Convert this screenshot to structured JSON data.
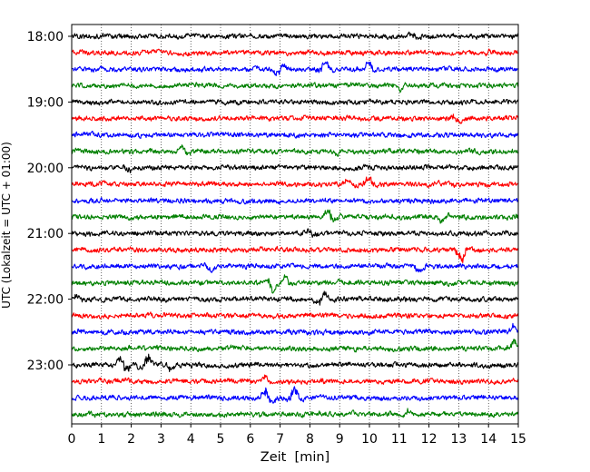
{
  "chart_data": {
    "type": "line",
    "title": "",
    "xlabel": "Zeit  [min]",
    "ylabel": "UTC (Lokalzeit = UTC + 01:00)",
    "xlim": [
      0,
      15
    ],
    "x_ticks": [
      "0",
      "1",
      "2",
      "3",
      "4",
      "5",
      "6",
      "7",
      "8",
      "9",
      "10",
      "11",
      "12",
      "13",
      "14",
      "15"
    ],
    "y_ticks": [
      {
        "label": "18:00",
        "trace_index": 0
      },
      {
        "label": "19:00",
        "trace_index": 4
      },
      {
        "label": "20:00",
        "trace_index": 8
      },
      {
        "label": "21:00",
        "trace_index": 12
      },
      {
        "label": "22:00",
        "trace_index": 16
      },
      {
        "label": "23:00",
        "trace_index": 20
      }
    ],
    "grid": "vertical dotted lines at each minute",
    "trace_colors": [
      "#000000",
      "#ff0000",
      "#0000ff",
      "#008000"
    ],
    "trace_count": 24,
    "trace_interval_minutes": 15,
    "series": [
      {
        "start": "18:00",
        "color": "#000000",
        "events": [
          {
            "x": 11.5,
            "amp": 0.5
          }
        ]
      },
      {
        "start": "18:15",
        "color": "#ff0000",
        "events": [
          {
            "x": 14.0,
            "amp": 0.4
          }
        ]
      },
      {
        "start": "18:30",
        "color": "#0000ff",
        "events": [
          {
            "x": 7.0,
            "amp": 0.9
          },
          {
            "x": 8.5,
            "amp": 0.9
          },
          {
            "x": 10.0,
            "amp": 0.7
          }
        ]
      },
      {
        "start": "18:45",
        "color": "#008000",
        "events": [
          {
            "x": 11.0,
            "amp": 0.5
          }
        ]
      },
      {
        "start": "19:00",
        "color": "#000000",
        "events": []
      },
      {
        "start": "19:15",
        "color": "#ff0000",
        "events": [
          {
            "x": 12.9,
            "amp": 0.6
          }
        ]
      },
      {
        "start": "19:30",
        "color": "#0000ff",
        "events": []
      },
      {
        "start": "19:45",
        "color": "#008000",
        "events": [
          {
            "x": 3.8,
            "amp": 0.6
          },
          {
            "x": 9.0,
            "amp": 0.5
          }
        ]
      },
      {
        "start": "20:00",
        "color": "#000000",
        "events": [
          {
            "x": 2.0,
            "amp": 0.4
          }
        ]
      },
      {
        "start": "20:15",
        "color": "#ff0000",
        "events": [
          {
            "x": 9.3,
            "amp": 0.6
          },
          {
            "x": 10.0,
            "amp": 0.8
          }
        ]
      },
      {
        "start": "20:30",
        "color": "#0000ff",
        "events": []
      },
      {
        "start": "20:45",
        "color": "#008000",
        "events": [
          {
            "x": 8.7,
            "amp": 0.9
          },
          {
            "x": 12.5,
            "amp": 0.6
          }
        ]
      },
      {
        "start": "21:00",
        "color": "#000000",
        "events": [
          {
            "x": 8.0,
            "amp": 0.5
          }
        ]
      },
      {
        "start": "21:15",
        "color": "#ff0000",
        "events": [
          {
            "x": 13.1,
            "amp": 1.4
          }
        ]
      },
      {
        "start": "21:30",
        "color": "#0000ff",
        "events": [
          {
            "x": 4.7,
            "amp": 0.6
          },
          {
            "x": 11.7,
            "amp": 0.7
          }
        ]
      },
      {
        "start": "21:45",
        "color": "#008000",
        "events": [
          {
            "x": 6.7,
            "amp": 1.2
          },
          {
            "x": 7.2,
            "amp": 0.8
          }
        ]
      },
      {
        "start": "22:00",
        "color": "#000000",
        "events": [
          {
            "x": 0.2,
            "amp": 0.6
          },
          {
            "x": 8.4,
            "amp": 0.9
          }
        ]
      },
      {
        "start": "22:15",
        "color": "#ff0000",
        "events": []
      },
      {
        "start": "22:30",
        "color": "#0000ff",
        "events": [
          {
            "x": 14.9,
            "amp": 0.8
          }
        ]
      },
      {
        "start": "22:45",
        "color": "#008000",
        "events": [
          {
            "x": 14.9,
            "amp": 0.9
          }
        ]
      },
      {
        "start": "23:00",
        "color": "#000000",
        "events": [
          {
            "x": 1.7,
            "amp": 1.3
          },
          {
            "x": 2.5,
            "amp": -1.2
          },
          {
            "x": 3.3,
            "amp": 0.6
          }
        ]
      },
      {
        "start": "23:15",
        "color": "#ff0000",
        "events": [
          {
            "x": 6.5,
            "amp": 0.5
          }
        ]
      },
      {
        "start": "23:30",
        "color": "#0000ff",
        "events": [
          {
            "x": 6.6,
            "amp": 1.2
          },
          {
            "x": 7.5,
            "amp": -1.3
          }
        ]
      },
      {
        "start": "23:45",
        "color": "#008000",
        "events": [
          {
            "x": 11.3,
            "amp": 0.4
          }
        ]
      }
    ]
  }
}
